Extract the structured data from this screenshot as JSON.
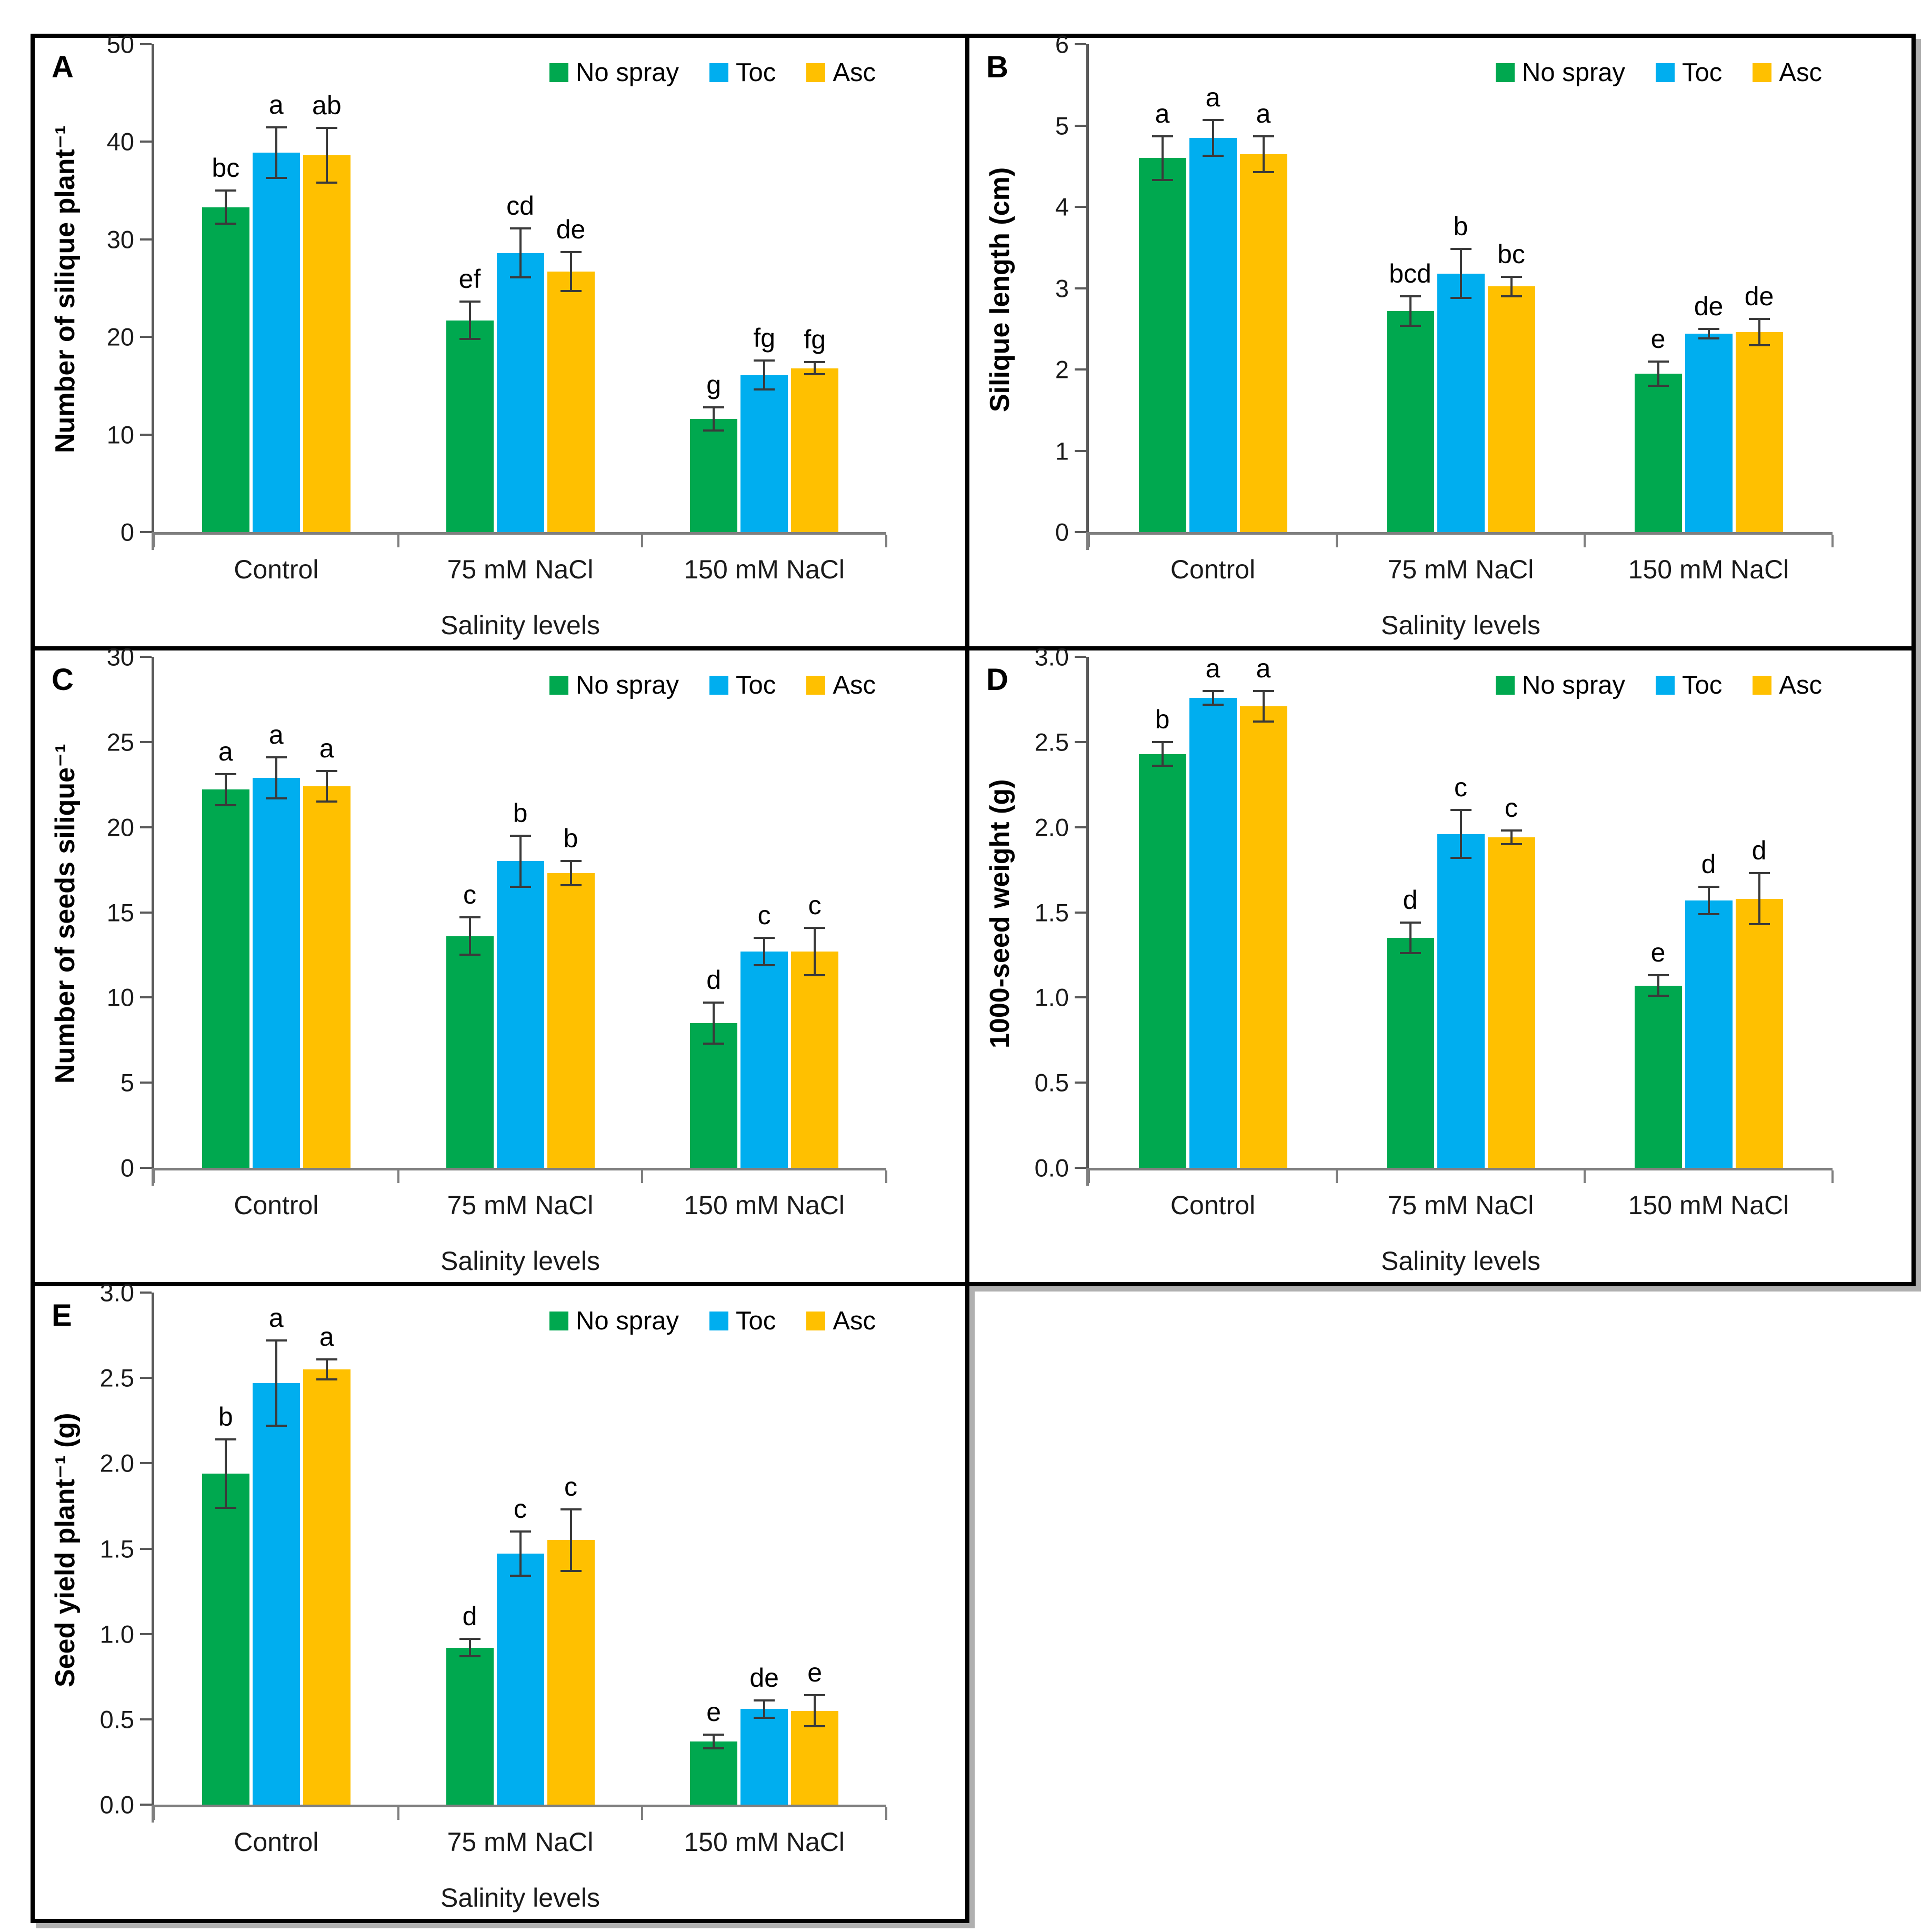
{
  "figure": {
    "background": "#ffffff",
    "panel_border_color": "#000000",
    "panel_shadow_color": "#b0b0b0",
    "axis_line_color_y": "#595959",
    "axis_line_color_x": "#7f7f7f",
    "error_bar_color": "#3a3a3a",
    "series_colors": {
      "no_spray": "#00a84f",
      "toc": "#00aeef",
      "asc": "#ffc000"
    },
    "legend_labels": [
      "No spray",
      "Toc",
      "Asc"
    ],
    "x_axis_title": "Salinity levels",
    "categories": [
      "Control",
      "75 mM NaCl",
      "150 mM NaCl"
    ]
  },
  "chart_data": [
    {
      "type": "bar",
      "panel_label": "A",
      "title": "",
      "ylabel": "Number of silique plant⁻¹",
      "xlabel": "Salinity levels",
      "categories": [
        "Control",
        "75 mM NaCl",
        "150 mM NaCl"
      ],
      "ylim": [
        0,
        50
      ],
      "ytick_step": 10,
      "ytick_decimals": 0,
      "grid": false,
      "legend_position": "top-right",
      "series": [
        {
          "name": "No spray",
          "color": "#00a84f",
          "values": [
            33.3,
            21.7,
            11.6
          ],
          "errors": [
            1.7,
            1.9,
            1.2
          ],
          "letters": [
            "bc",
            "ef",
            "g"
          ]
        },
        {
          "name": "Toc",
          "color": "#00aeef",
          "values": [
            38.9,
            28.6,
            16.1
          ],
          "errors": [
            2.6,
            2.5,
            1.5
          ],
          "letters": [
            "a",
            "cd",
            "fg"
          ]
        },
        {
          "name": "Asc",
          "color": "#ffc000",
          "values": [
            38.6,
            26.7,
            16.8
          ],
          "errors": [
            2.8,
            2.0,
            0.6
          ],
          "letters": [
            "ab",
            "de",
            "fg"
          ]
        }
      ]
    },
    {
      "type": "bar",
      "panel_label": "B",
      "title": "",
      "ylabel": "Silique length (cm)",
      "xlabel": "Salinity levels",
      "categories": [
        "Control",
        "75 mM NaCl",
        "150 mM NaCl"
      ],
      "ylim": [
        0,
        6
      ],
      "ytick_step": 1,
      "ytick_decimals": 0,
      "grid": false,
      "legend_position": "top-right",
      "series": [
        {
          "name": "No spray",
          "color": "#00a84f",
          "values": [
            4.6,
            2.72,
            1.95
          ],
          "errors": [
            0.27,
            0.18,
            0.15
          ],
          "letters": [
            "a",
            "bcd",
            "e"
          ]
        },
        {
          "name": "Toc",
          "color": "#00aeef",
          "values": [
            4.85,
            3.18,
            2.44
          ],
          "errors": [
            0.22,
            0.3,
            0.06
          ],
          "letters": [
            "a",
            "b",
            "de"
          ]
        },
        {
          "name": "Asc",
          "color": "#ffc000",
          "values": [
            4.65,
            3.02,
            2.46
          ],
          "errors": [
            0.22,
            0.12,
            0.16
          ],
          "letters": [
            "a",
            "bc",
            "de"
          ]
        }
      ]
    },
    {
      "type": "bar",
      "panel_label": "C",
      "title": "",
      "ylabel": "Number of seeds silique⁻¹",
      "xlabel": "Salinity levels",
      "categories": [
        "Control",
        "75 mM NaCl",
        "150 mM NaCl"
      ],
      "ylim": [
        0,
        30
      ],
      "ytick_step": 5,
      "ytick_decimals": 0,
      "grid": false,
      "legend_position": "top-right",
      "series": [
        {
          "name": "No spray",
          "color": "#00a84f",
          "values": [
            22.2,
            13.6,
            8.5
          ],
          "errors": [
            0.9,
            1.1,
            1.2
          ],
          "letters": [
            "a",
            "c",
            "d"
          ]
        },
        {
          "name": "Toc",
          "color": "#00aeef",
          "values": [
            22.9,
            18.0,
            12.7
          ],
          "errors": [
            1.2,
            1.5,
            0.8
          ],
          "letters": [
            "a",
            "b",
            "c"
          ]
        },
        {
          "name": "Asc",
          "color": "#ffc000",
          "values": [
            22.4,
            17.3,
            12.7
          ],
          "errors": [
            0.9,
            0.7,
            1.4
          ],
          "letters": [
            "a",
            "b",
            "c"
          ]
        }
      ]
    },
    {
      "type": "bar",
      "panel_label": "D",
      "title": "",
      "ylabel": "1000-seed weight (g)",
      "xlabel": "Salinity levels",
      "categories": [
        "Control",
        "75 mM NaCl",
        "150 mM NaCl"
      ],
      "ylim": [
        0,
        3.0
      ],
      "ytick_step": 0.5,
      "ytick_decimals": 1,
      "grid": false,
      "legend_position": "top-right",
      "series": [
        {
          "name": "No spray",
          "color": "#00a84f",
          "values": [
            2.43,
            1.35,
            1.07
          ],
          "errors": [
            0.07,
            0.09,
            0.06
          ],
          "letters": [
            "b",
            "d",
            "e"
          ]
        },
        {
          "name": "Toc",
          "color": "#00aeef",
          "values": [
            2.76,
            1.96,
            1.57
          ],
          "errors": [
            0.04,
            0.14,
            0.08
          ],
          "letters": [
            "a",
            "c",
            "d"
          ]
        },
        {
          "name": "Asc",
          "color": "#ffc000",
          "values": [
            2.71,
            1.94,
            1.58
          ],
          "errors": [
            0.09,
            0.04,
            0.15
          ],
          "letters": [
            "a",
            "c",
            "d"
          ]
        }
      ]
    },
    {
      "type": "bar",
      "panel_label": "E",
      "title": "",
      "ylabel": "Seed yield plant⁻¹ (g)",
      "xlabel": "Salinity levels",
      "categories": [
        "Control",
        "75 mM NaCl",
        "150 mM NaCl"
      ],
      "ylim": [
        0,
        3.0
      ],
      "ytick_step": 0.5,
      "ytick_decimals": 1,
      "grid": false,
      "legend_position": "top-right",
      "series": [
        {
          "name": "No spray",
          "color": "#00a84f",
          "values": [
            1.94,
            0.92,
            0.37
          ],
          "errors": [
            0.2,
            0.05,
            0.04
          ],
          "letters": [
            "b",
            "d",
            "e"
          ]
        },
        {
          "name": "Toc",
          "color": "#00aeef",
          "values": [
            2.47,
            1.47,
            0.56
          ],
          "errors": [
            0.25,
            0.13,
            0.05
          ],
          "letters": [
            "a",
            "c",
            "de"
          ]
        },
        {
          "name": "Asc",
          "color": "#ffc000",
          "values": [
            2.55,
            1.55,
            0.55
          ],
          "errors": [
            0.06,
            0.18,
            0.09
          ],
          "letters": [
            "a",
            "c",
            "e"
          ]
        }
      ]
    }
  ]
}
